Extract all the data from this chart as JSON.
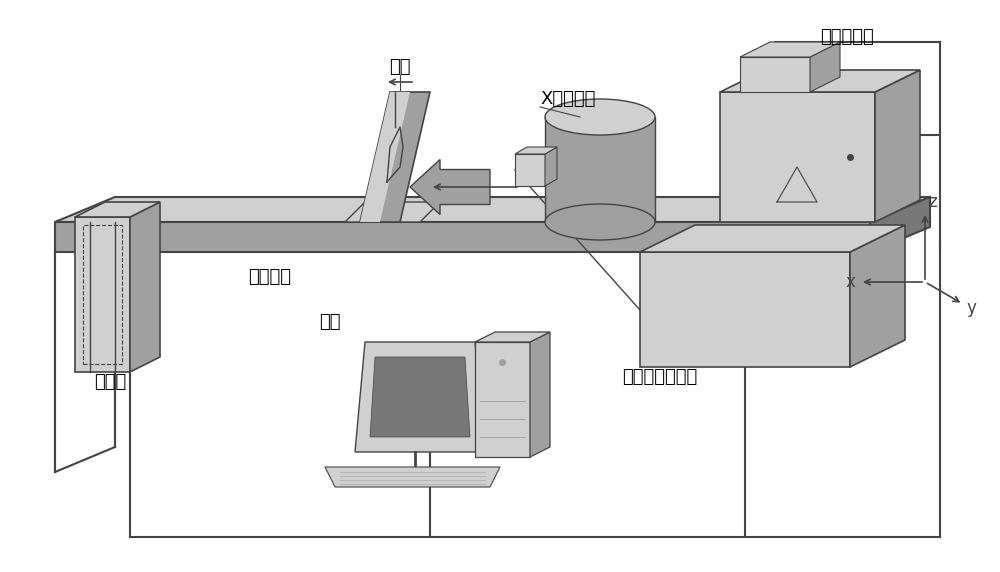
{
  "bg_color": "#ffffff",
  "labels": {
    "zhuantai": "转台",
    "xsheqiu": "X射线球管",
    "gaoya": "高压发生器",
    "tance": "探测器",
    "taijia": "台架平面",
    "bujin": "步进电机控制器",
    "diannao": "电脑"
  },
  "axis_labels": {
    "x": "x",
    "y": "y",
    "z": "z"
  },
  "colors": {
    "line": "#444444",
    "light_gray": "#d0d0d0",
    "mid_gray": "#a0a0a0",
    "dark_gray": "#787878",
    "white": "#ffffff",
    "arrow_fill": "#bbbbbb"
  }
}
